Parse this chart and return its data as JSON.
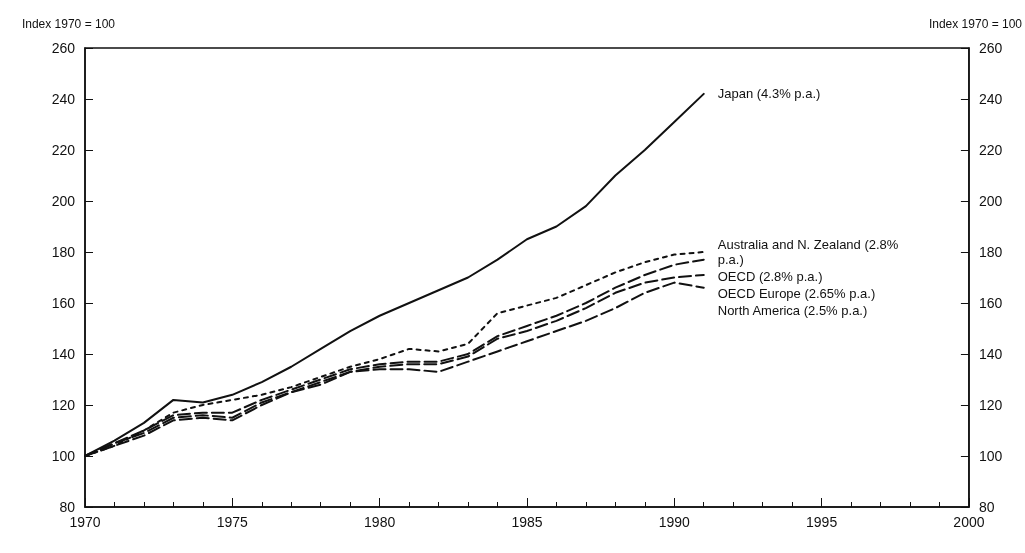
{
  "chart_data": {
    "type": "line",
    "ylabel": "Index 1970 = 100",
    "y2label": "Index 1970 = 100",
    "x": [
      1970,
      1971,
      1972,
      1973,
      1974,
      1975,
      1976,
      1977,
      1978,
      1979,
      1980,
      1981,
      1982,
      1983,
      1984,
      1985,
      1986,
      1987,
      1988,
      1989,
      1990,
      1991
    ],
    "series": [
      {
        "name": "Japan (4.3% p.a.)",
        "color": "#111111",
        "line_style": "solid",
        "values": [
          100,
          106,
          113,
          122,
          121,
          124,
          129,
          135,
          142,
          149,
          155,
          160,
          165,
          170,
          177,
          185,
          190,
          198,
          210,
          220,
          231,
          242
        ]
      },
      {
        "name": "Australia and N. Zealand (2.8% p.a.)",
        "color": "#111111",
        "line_style": "dotted",
        "values": [
          100,
          104,
          110,
          117,
          120,
          122,
          124,
          127,
          131,
          135,
          138,
          142,
          141,
          144,
          156,
          159,
          162,
          167,
          172,
          176,
          179,
          180
        ]
      },
      {
        "name": "OECD (2.8% p.a.)",
        "color": "#111111",
        "line_style": "dashed",
        "values": [
          100,
          105,
          110,
          116,
          117,
          117,
          122,
          126,
          130,
          134,
          136,
          137,
          137,
          140,
          147,
          151,
          155,
          160,
          166,
          171,
          175,
          177
        ]
      },
      {
        "name": "OECD Europe (2.65% p.a.)",
        "color": "#111111",
        "line_style": "dashed",
        "values": [
          100,
          105,
          109,
          115,
          116,
          115,
          121,
          125,
          129,
          133,
          135,
          136,
          136,
          139,
          146,
          149,
          153,
          158,
          164,
          168,
          170,
          171
        ]
      },
      {
        "name": "North America (2.5% p.a.)",
        "color": "#111111",
        "line_style": "dashed",
        "values": [
          100,
          104,
          108,
          114,
          115,
          114,
          120,
          125,
          128,
          133,
          134,
          134,
          133,
          137,
          141,
          145,
          149,
          153,
          158,
          164,
          168,
          166
        ]
      }
    ],
    "xlim": [
      1970,
      2000
    ],
    "xticks": [
      1970,
      1975,
      1980,
      1985,
      1990,
      1995,
      2000
    ],
    "ylim": [
      80,
      260
    ],
    "yticks": [
      80,
      100,
      120,
      140,
      160,
      180,
      200,
      220,
      240,
      260
    ],
    "y2lim": [
      80,
      260
    ],
    "y2ticks": [
      80,
      100,
      120,
      140,
      160,
      180,
      200,
      220,
      240,
      260
    ],
    "grid": false,
    "legend": false,
    "marker": "none"
  }
}
